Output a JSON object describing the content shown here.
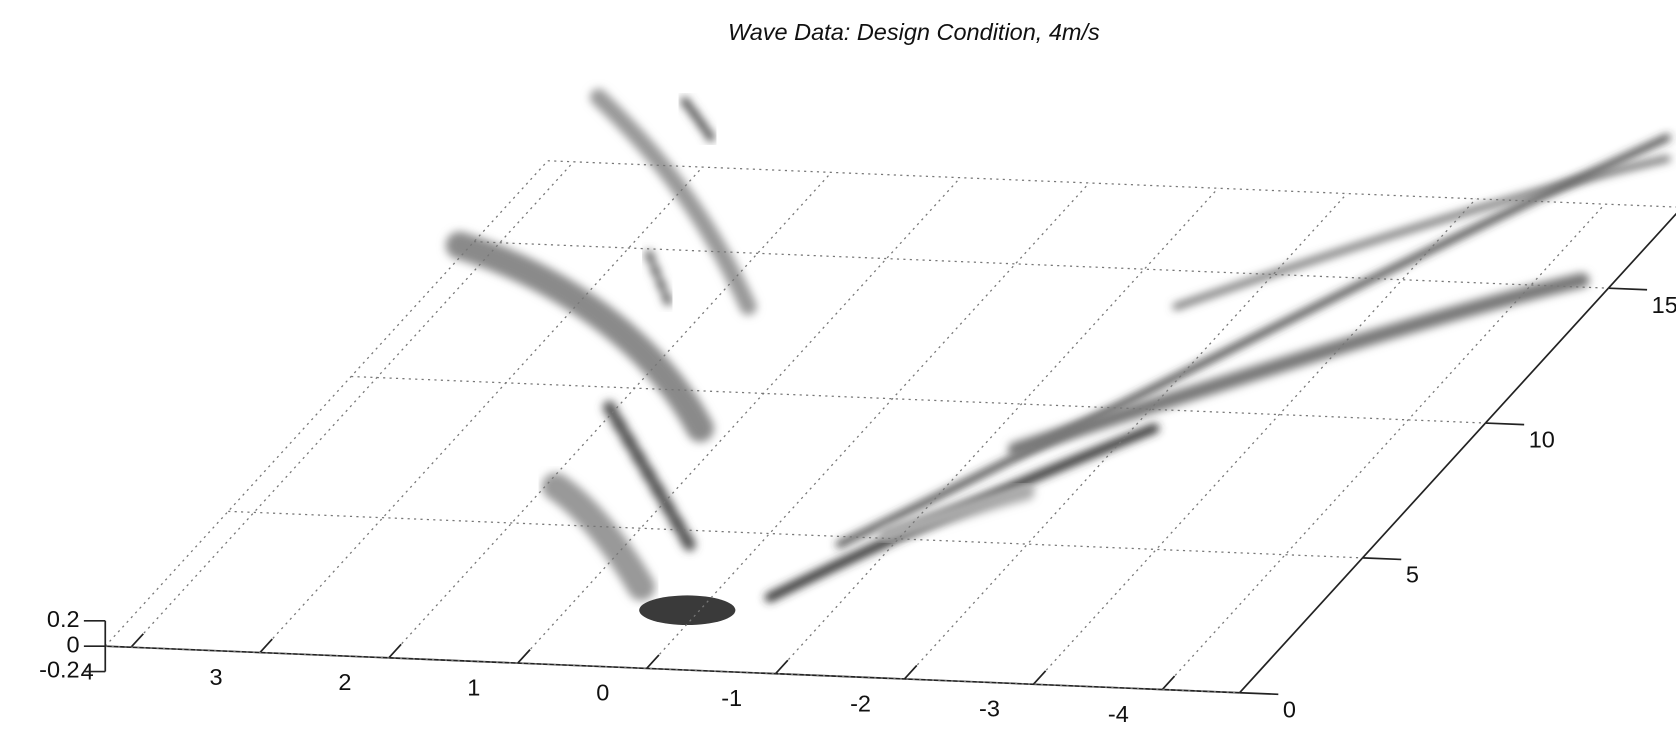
{
  "chart_data": {
    "type": "surface",
    "title": "Wave Data: Design Condition, 4m/s",
    "xlim": [
      4.2,
      -4.6
    ],
    "xticks": [
      4,
      3,
      2,
      1,
      0,
      -1,
      -2,
      -3,
      -4
    ],
    "ylim": [
      0,
      18
    ],
    "yticks": [
      0,
      5,
      10,
      15
    ],
    "zlim": [
      -0.2,
      0.2
    ],
    "zticks": [
      0.2,
      0,
      -0.2
    ],
    "grid": true
  }
}
